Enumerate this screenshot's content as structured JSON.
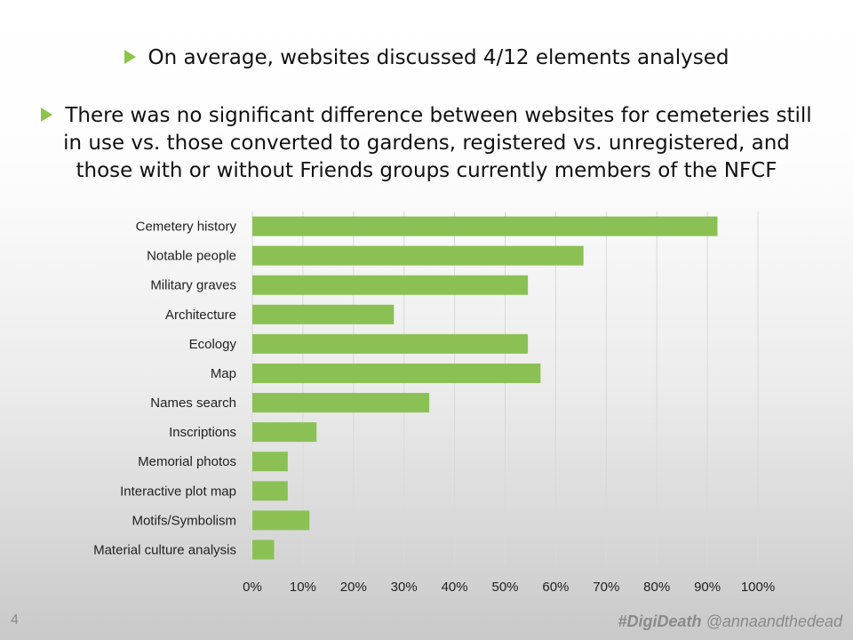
{
  "slide": {
    "bullet1": "On average, websites discussed 4/12 elements analysed",
    "bullet2": "There was no significant difference between websites for cemeteries still in use vs. those converted to gardens, registered vs. unregistered, and those with or without Friends groups currently members of the NFCF",
    "page_number": "4",
    "hashtag": "#DigiDeath",
    "handle": "@annaandthedead"
  },
  "colors": {
    "bar": "#8bc154",
    "bullet_arrow": "#8dc44a",
    "grid": "#d9d9d9"
  },
  "chart_data": {
    "type": "bar",
    "orientation": "horizontal",
    "categories": [
      "Cemetery history",
      "Notable people",
      "Military graves",
      "Architecture",
      "Ecology",
      "Map",
      "Names search",
      "Inscriptions",
      "Memorial photos",
      "Interactive plot map",
      "Motifs/Symbolism",
      "Material culture analysis"
    ],
    "values": [
      0.92,
      0.655,
      0.545,
      0.28,
      0.545,
      0.57,
      0.35,
      0.127,
      0.07,
      0.07,
      0.113,
      0.043
    ],
    "xlim": [
      0,
      1
    ],
    "xticks": [
      "0%",
      "10%",
      "20%",
      "30%",
      "40%",
      "50%",
      "60%",
      "70%",
      "80%",
      "90%",
      "100%"
    ],
    "grid": true,
    "legend": "none"
  }
}
